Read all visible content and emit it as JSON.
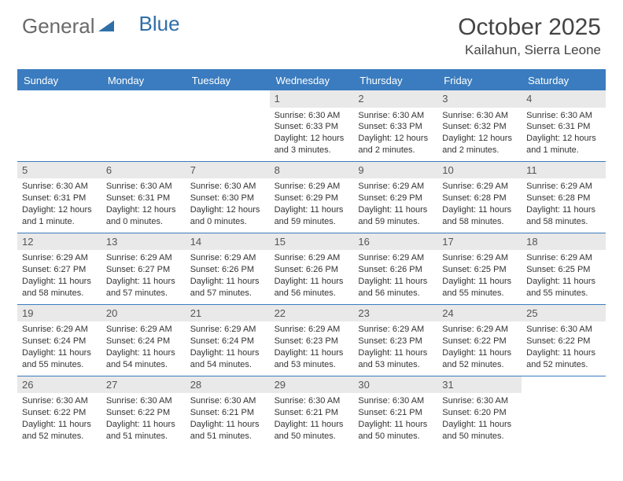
{
  "logo": {
    "text_general": "General",
    "text_blue": "Blue"
  },
  "title": "October 2025",
  "location": "Kailahun, Sierra Leone",
  "colors": {
    "header_bar": "#3a7cbf",
    "daynum_bg": "#e9e9e9",
    "logo_gray": "#6a6a6a",
    "logo_blue": "#2f6fa8",
    "text": "#333333"
  },
  "weekdays": [
    "Sunday",
    "Monday",
    "Tuesday",
    "Wednesday",
    "Thursday",
    "Friday",
    "Saturday"
  ],
  "weeks": [
    [
      {
        "day": "",
        "sunrise": "",
        "sunset": "",
        "daylight": ""
      },
      {
        "day": "",
        "sunrise": "",
        "sunset": "",
        "daylight": ""
      },
      {
        "day": "",
        "sunrise": "",
        "sunset": "",
        "daylight": ""
      },
      {
        "day": "1",
        "sunrise": "Sunrise: 6:30 AM",
        "sunset": "Sunset: 6:33 PM",
        "daylight": "Daylight: 12 hours and 3 minutes."
      },
      {
        "day": "2",
        "sunrise": "Sunrise: 6:30 AM",
        "sunset": "Sunset: 6:33 PM",
        "daylight": "Daylight: 12 hours and 2 minutes."
      },
      {
        "day": "3",
        "sunrise": "Sunrise: 6:30 AM",
        "sunset": "Sunset: 6:32 PM",
        "daylight": "Daylight: 12 hours and 2 minutes."
      },
      {
        "day": "4",
        "sunrise": "Sunrise: 6:30 AM",
        "sunset": "Sunset: 6:31 PM",
        "daylight": "Daylight: 12 hours and 1 minute."
      }
    ],
    [
      {
        "day": "5",
        "sunrise": "Sunrise: 6:30 AM",
        "sunset": "Sunset: 6:31 PM",
        "daylight": "Daylight: 12 hours and 1 minute."
      },
      {
        "day": "6",
        "sunrise": "Sunrise: 6:30 AM",
        "sunset": "Sunset: 6:31 PM",
        "daylight": "Daylight: 12 hours and 0 minutes."
      },
      {
        "day": "7",
        "sunrise": "Sunrise: 6:30 AM",
        "sunset": "Sunset: 6:30 PM",
        "daylight": "Daylight: 12 hours and 0 minutes."
      },
      {
        "day": "8",
        "sunrise": "Sunrise: 6:29 AM",
        "sunset": "Sunset: 6:29 PM",
        "daylight": "Daylight: 11 hours and 59 minutes."
      },
      {
        "day": "9",
        "sunrise": "Sunrise: 6:29 AM",
        "sunset": "Sunset: 6:29 PM",
        "daylight": "Daylight: 11 hours and 59 minutes."
      },
      {
        "day": "10",
        "sunrise": "Sunrise: 6:29 AM",
        "sunset": "Sunset: 6:28 PM",
        "daylight": "Daylight: 11 hours and 58 minutes."
      },
      {
        "day": "11",
        "sunrise": "Sunrise: 6:29 AM",
        "sunset": "Sunset: 6:28 PM",
        "daylight": "Daylight: 11 hours and 58 minutes."
      }
    ],
    [
      {
        "day": "12",
        "sunrise": "Sunrise: 6:29 AM",
        "sunset": "Sunset: 6:27 PM",
        "daylight": "Daylight: 11 hours and 58 minutes."
      },
      {
        "day": "13",
        "sunrise": "Sunrise: 6:29 AM",
        "sunset": "Sunset: 6:27 PM",
        "daylight": "Daylight: 11 hours and 57 minutes."
      },
      {
        "day": "14",
        "sunrise": "Sunrise: 6:29 AM",
        "sunset": "Sunset: 6:26 PM",
        "daylight": "Daylight: 11 hours and 57 minutes."
      },
      {
        "day": "15",
        "sunrise": "Sunrise: 6:29 AM",
        "sunset": "Sunset: 6:26 PM",
        "daylight": "Daylight: 11 hours and 56 minutes."
      },
      {
        "day": "16",
        "sunrise": "Sunrise: 6:29 AM",
        "sunset": "Sunset: 6:26 PM",
        "daylight": "Daylight: 11 hours and 56 minutes."
      },
      {
        "day": "17",
        "sunrise": "Sunrise: 6:29 AM",
        "sunset": "Sunset: 6:25 PM",
        "daylight": "Daylight: 11 hours and 55 minutes."
      },
      {
        "day": "18",
        "sunrise": "Sunrise: 6:29 AM",
        "sunset": "Sunset: 6:25 PM",
        "daylight": "Daylight: 11 hours and 55 minutes."
      }
    ],
    [
      {
        "day": "19",
        "sunrise": "Sunrise: 6:29 AM",
        "sunset": "Sunset: 6:24 PM",
        "daylight": "Daylight: 11 hours and 55 minutes."
      },
      {
        "day": "20",
        "sunrise": "Sunrise: 6:29 AM",
        "sunset": "Sunset: 6:24 PM",
        "daylight": "Daylight: 11 hours and 54 minutes."
      },
      {
        "day": "21",
        "sunrise": "Sunrise: 6:29 AM",
        "sunset": "Sunset: 6:24 PM",
        "daylight": "Daylight: 11 hours and 54 minutes."
      },
      {
        "day": "22",
        "sunrise": "Sunrise: 6:29 AM",
        "sunset": "Sunset: 6:23 PM",
        "daylight": "Daylight: 11 hours and 53 minutes."
      },
      {
        "day": "23",
        "sunrise": "Sunrise: 6:29 AM",
        "sunset": "Sunset: 6:23 PM",
        "daylight": "Daylight: 11 hours and 53 minutes."
      },
      {
        "day": "24",
        "sunrise": "Sunrise: 6:29 AM",
        "sunset": "Sunset: 6:22 PM",
        "daylight": "Daylight: 11 hours and 52 minutes."
      },
      {
        "day": "25",
        "sunrise": "Sunrise: 6:30 AM",
        "sunset": "Sunset: 6:22 PM",
        "daylight": "Daylight: 11 hours and 52 minutes."
      }
    ],
    [
      {
        "day": "26",
        "sunrise": "Sunrise: 6:30 AM",
        "sunset": "Sunset: 6:22 PM",
        "daylight": "Daylight: 11 hours and 52 minutes."
      },
      {
        "day": "27",
        "sunrise": "Sunrise: 6:30 AM",
        "sunset": "Sunset: 6:22 PM",
        "daylight": "Daylight: 11 hours and 51 minutes."
      },
      {
        "day": "28",
        "sunrise": "Sunrise: 6:30 AM",
        "sunset": "Sunset: 6:21 PM",
        "daylight": "Daylight: 11 hours and 51 minutes."
      },
      {
        "day": "29",
        "sunrise": "Sunrise: 6:30 AM",
        "sunset": "Sunset: 6:21 PM",
        "daylight": "Daylight: 11 hours and 50 minutes."
      },
      {
        "day": "30",
        "sunrise": "Sunrise: 6:30 AM",
        "sunset": "Sunset: 6:21 PM",
        "daylight": "Daylight: 11 hours and 50 minutes."
      },
      {
        "day": "31",
        "sunrise": "Sunrise: 6:30 AM",
        "sunset": "Sunset: 6:20 PM",
        "daylight": "Daylight: 11 hours and 50 minutes."
      },
      {
        "day": "",
        "sunrise": "",
        "sunset": "",
        "daylight": ""
      }
    ]
  ]
}
